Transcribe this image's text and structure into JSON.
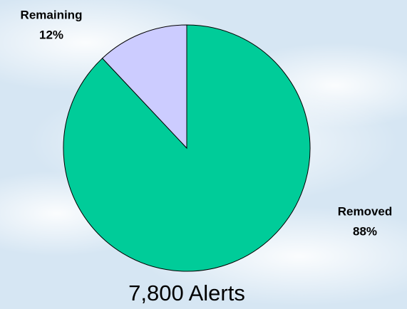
{
  "chart_data": {
    "type": "pie",
    "title": "7,800 Alerts",
    "categories": [
      "Removed",
      "Remaining"
    ],
    "values": [
      88,
      12
    ],
    "value_labels": [
      "88%",
      "12%"
    ],
    "colors": [
      "#00cc99",
      "#ccccff"
    ]
  }
}
